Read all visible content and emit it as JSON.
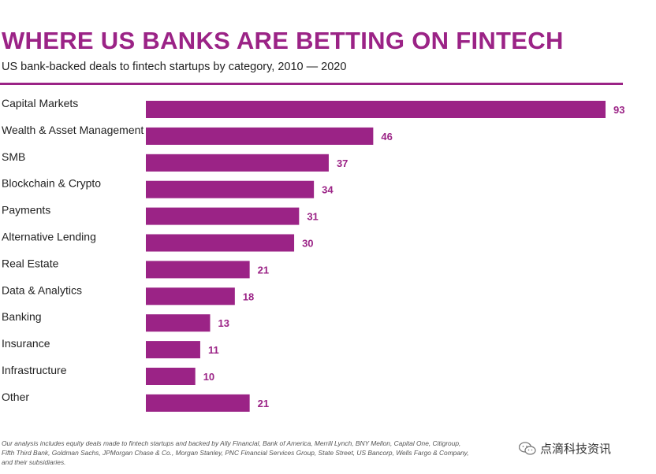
{
  "colors": {
    "accent": "#9b2386",
    "text": "#222222",
    "footnote": "#555555"
  },
  "title": "WHERE US BANKS ARE BETTING ON FINTECH",
  "subtitle": "US bank-backed deals to fintech startups by category, 2010 — 2020",
  "footnote": "Our analysis includes equity deals made to fintech startups and backed by Ally Financial, Bank of America, Merrill Lynch, BNY Mellon, Capital One, Citigroup, Fifth Third Bank, Goldman Sachs, JPMorgan Chase & Co., Morgan Stanley, PNC Financial Services Group, State Street, US Bancorp, Wells Fargo & Company, and their subsidiaries.",
  "watermark": {
    "icon": "wechat-icon",
    "text": "点滴科技资讯"
  },
  "chart_data": {
    "type": "bar",
    "orientation": "horizontal",
    "title": "WHERE US BANKS ARE BETTING ON FINTECH",
    "subtitle": "US bank-backed deals to fintech startups by category, 2010 — 2020",
    "categories": [
      "Capital Markets",
      "Wealth & Asset Management",
      "SMB",
      "Blockchain & Crypto",
      "Payments",
      "Alternative Lending",
      "Real Estate",
      "Data & Analytics",
      "Banking",
      "Insurance",
      "Infrastructure",
      "Other"
    ],
    "values": [
      93,
      46,
      37,
      34,
      31,
      30,
      21,
      18,
      13,
      11,
      10,
      21
    ],
    "xlim": [
      0,
      93
    ],
    "grid": false,
    "legend": "none",
    "data_labels": true
  }
}
